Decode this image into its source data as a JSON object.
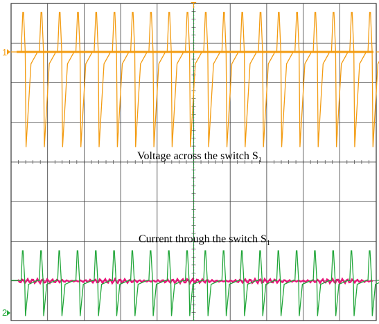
{
  "chart_data": {
    "type": "line",
    "title": "",
    "xlabel": "",
    "ylabel": "",
    "grid": true,
    "grid_divisions": {
      "horizontal": 10,
      "vertical": 8
    },
    "trigger_marker": "T",
    "channels": [
      {
        "id": "1",
        "marker_label": "1",
        "color": "#f39c12",
        "caption": {
          "text": "Voltage across the switch S",
          "sub": "1"
        },
        "waveform": "pulse-train",
        "pulses_per_screen": 20,
        "levels_div": {
          "baseline": 0,
          "high": 1.0,
          "low": -2.4
        },
        "time_points_div": [
          0,
          0.1,
          0.15,
          0.25,
          0.3,
          0.6,
          1.0
        ],
        "values_div": [
          0,
          1.0,
          1.0,
          0,
          -2.4,
          -0.3,
          0
        ]
      },
      {
        "id": "2",
        "marker_label": "2",
        "color": "#22a63a",
        "caption": {
          "text": "Current through the switch S",
          "sub": "1"
        },
        "waveform": "pulse-train",
        "pulses_per_screen": 20,
        "levels_div": {
          "baseline": 0,
          "high": 0.75,
          "low": -0.9
        },
        "time_points_div": [
          0,
          0.08,
          0.12,
          0.22,
          0.26,
          0.45,
          1.0
        ],
        "values_div": [
          0,
          0.75,
          0.75,
          0,
          -0.9,
          -0.1,
          0
        ]
      },
      {
        "id": "3",
        "marker_label": "",
        "color": "#e8157a",
        "waveform": "noisy-baseline",
        "levels_div": {
          "baseline": 0,
          "ripple": 0.06
        }
      }
    ]
  }
}
